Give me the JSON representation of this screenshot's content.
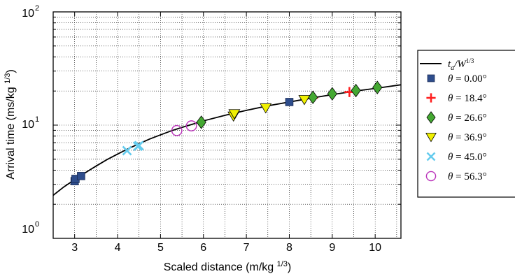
{
  "chart_data": {
    "type": "scatter",
    "title": "",
    "xlabel": "Scaled distance (m/kg ",
    "xlabel_sup": "1/3",
    "xlabel_suffix": ")",
    "ylabel": "Arrival time (ms/kg ",
    "ylabel_sup": "1/3",
    "ylabel_suffix": ")",
    "xlim": [
      2.5,
      10.6
    ],
    "ylim": [
      1,
      100
    ],
    "yscale": "log",
    "grid": true,
    "legend_placement": "outside-right",
    "x_ticks": [
      3,
      4,
      5,
      6,
      7,
      8,
      9,
      10
    ],
    "x_tick_labels": [
      "3",
      "4",
      "5",
      "6",
      "7",
      "8",
      "9",
      "10"
    ],
    "y_ticks": [
      1,
      10,
      100
    ],
    "y_tick_labels": [
      {
        "base": "10",
        "exp": "0"
      },
      {
        "base": "10",
        "exp": "1"
      },
      {
        "base": "10",
        "exp": "2"
      }
    ],
    "fit_curve": {
      "name_main": "t",
      "name_sub": "a",
      "name_rest": "/W",
      "name_sup": "1/3",
      "color": "#000000",
      "x": [
        2.5,
        2.75,
        3.0,
        3.25,
        3.5,
        3.75,
        4.0,
        4.25,
        4.5,
        4.75,
        5.0,
        5.25,
        5.5,
        5.75,
        6.0,
        6.5,
        7.0,
        7.5,
        8.0,
        8.5,
        9.0,
        9.5,
        10.0,
        10.6
      ],
      "y": [
        2.4,
        2.85,
        3.3,
        3.8,
        4.35,
        4.95,
        5.55,
        6.2,
        6.85,
        7.55,
        8.2,
        8.9,
        9.55,
        10.2,
        10.9,
        12.2,
        13.5,
        14.8,
        16.0,
        17.3,
        18.6,
        19.9,
        21.1,
        22.7
      ]
    },
    "series": [
      {
        "label_prefix": "θ",
        "label_value": " = 0.00°",
        "marker": "square",
        "color": "#2e4d8c",
        "stroke": "#1a2c55",
        "points": [
          [
            3.0,
            3.2
          ],
          [
            3.02,
            3.35
          ],
          [
            3.15,
            3.55
          ],
          [
            8.0,
            16.0
          ]
        ]
      },
      {
        "label_prefix": "θ",
        "label_value": " = 18.4°",
        "marker": "plus",
        "color": "#ff2020",
        "stroke": "#ff2020",
        "points": [
          [
            8.55,
            17.4
          ],
          [
            9.4,
            19.6
          ]
        ]
      },
      {
        "label_prefix": "θ",
        "label_value": " = 26.6°",
        "marker": "diamond",
        "color": "#44a832",
        "stroke": "#000000",
        "points": [
          [
            5.95,
            10.6
          ],
          [
            8.55,
            17.6
          ],
          [
            9.0,
            18.9
          ],
          [
            9.55,
            20.2
          ],
          [
            10.05,
            21.5
          ]
        ]
      },
      {
        "label_prefix": "θ",
        "label_value": " = 36.9°",
        "marker": "triangle-down",
        "color": "#f0f000",
        "stroke": "#000000",
        "points": [
          [
            6.7,
            12.0
          ],
          [
            6.72,
            12.6
          ],
          [
            7.45,
            14.2
          ],
          [
            8.35,
            16.8
          ]
        ]
      },
      {
        "label_prefix": "θ",
        "label_value": " = 45.0°",
        "marker": "x",
        "color": "#66ccee",
        "stroke": "#66ccee",
        "points": [
          [
            4.22,
            5.95
          ],
          [
            4.47,
            6.5
          ],
          [
            4.5,
            6.6
          ]
        ]
      },
      {
        "label_prefix": "θ",
        "label_value": " = 56.3°",
        "marker": "circle",
        "color": "#bb33bb",
        "stroke": "#bb33bb",
        "points": [
          [
            5.38,
            8.95
          ],
          [
            5.72,
            9.85
          ]
        ]
      }
    ]
  }
}
